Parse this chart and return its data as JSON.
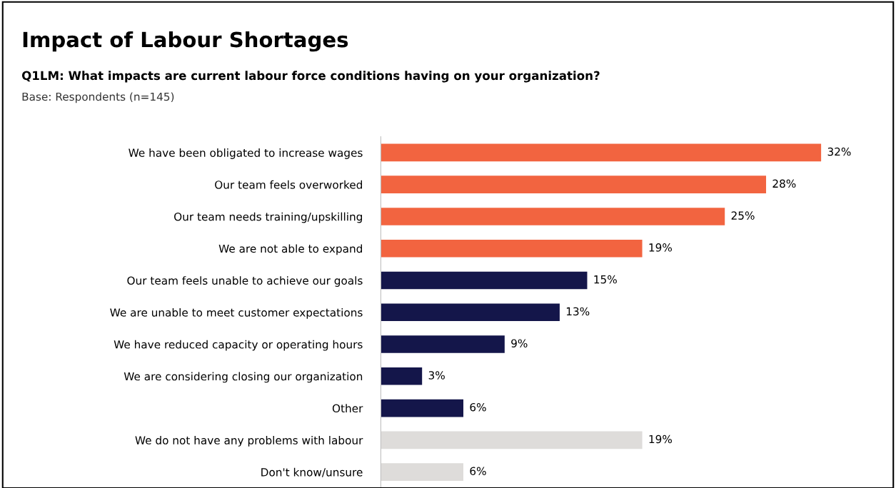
{
  "chart_data": {
    "type": "bar",
    "orientation": "horizontal",
    "title": "Impact of Labour Shortages",
    "subtitle": "Q1LM: What impacts are current labour force conditions having on your organization?",
    "annotations": [
      "Base: Respondents (n=145)"
    ],
    "categories": [
      "We have been obligated to increase wages",
      "Our team feels overworked",
      "Our team needs training/upskilling",
      "We are not able to expand",
      "Our team feels unable to achieve our goals",
      "We are unable to meet customer expectations",
      "We have reduced capacity or operating hours",
      "We are considering closing our organization",
      "Other",
      "We do not have any problems with labour",
      "Don't know/unsure"
    ],
    "values": [
      32,
      28,
      25,
      19,
      15,
      13,
      9,
      3,
      6,
      19,
      6
    ],
    "value_labels": [
      "32%",
      "28%",
      "25%",
      "19%",
      "15%",
      "13%",
      "9%",
      "3%",
      "6%",
      "19%",
      "6%"
    ],
    "colors": [
      "#f26440",
      "#f26440",
      "#f26440",
      "#f26440",
      "#14164a",
      "#14164a",
      "#14164a",
      "#14164a",
      "#14164a",
      "#dedcda",
      "#dedcda"
    ],
    "grid": false,
    "legend": false,
    "tick_labels": "y"
  }
}
